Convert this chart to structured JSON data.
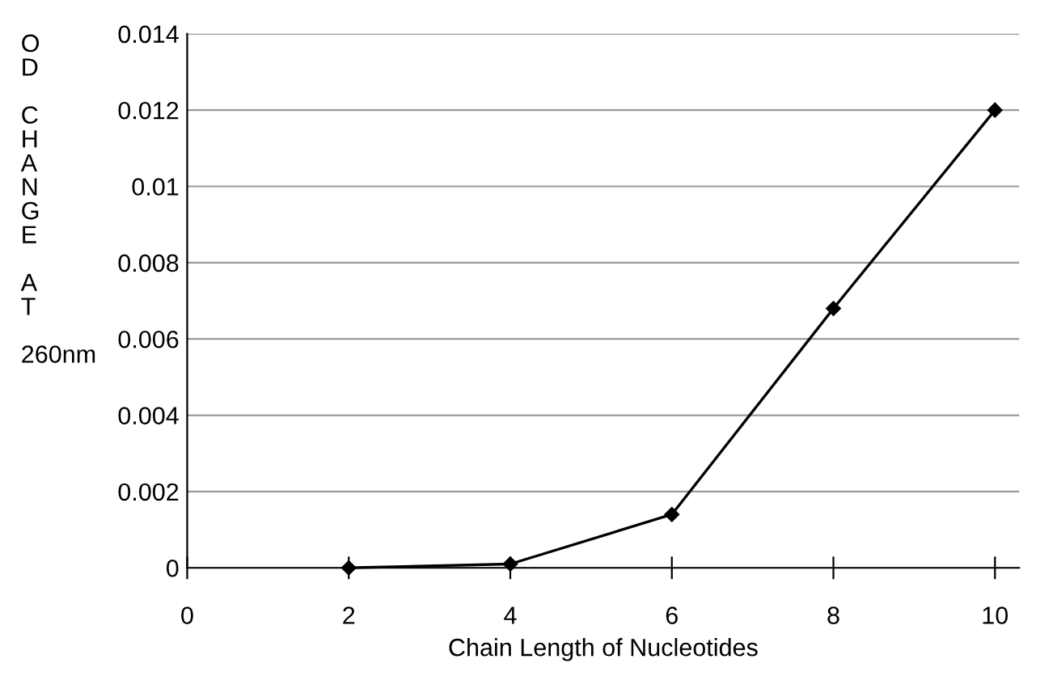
{
  "chart_data": {
    "type": "line",
    "xlabel": "Chain Length of Nucleotides",
    "ylabel": "OD CHANGE AT 260nm",
    "x": [
      2,
      4,
      6,
      8,
      10
    ],
    "series": [
      {
        "color": "#000000",
        "values": [
          0,
          0.0001,
          0.0014,
          0.0068,
          0.012
        ]
      }
    ],
    "xlim": [
      0,
      10.3
    ],
    "xticks": [
      0,
      2,
      4,
      6,
      8,
      10
    ],
    "ylim": [
      0,
      0.014
    ],
    "yticks": [
      0,
      0.002,
      0.004,
      0.006,
      0.008,
      0.01,
      0.012,
      0.014
    ],
    "grid": "y",
    "marker": "diamond",
    "line_style": "solid"
  }
}
